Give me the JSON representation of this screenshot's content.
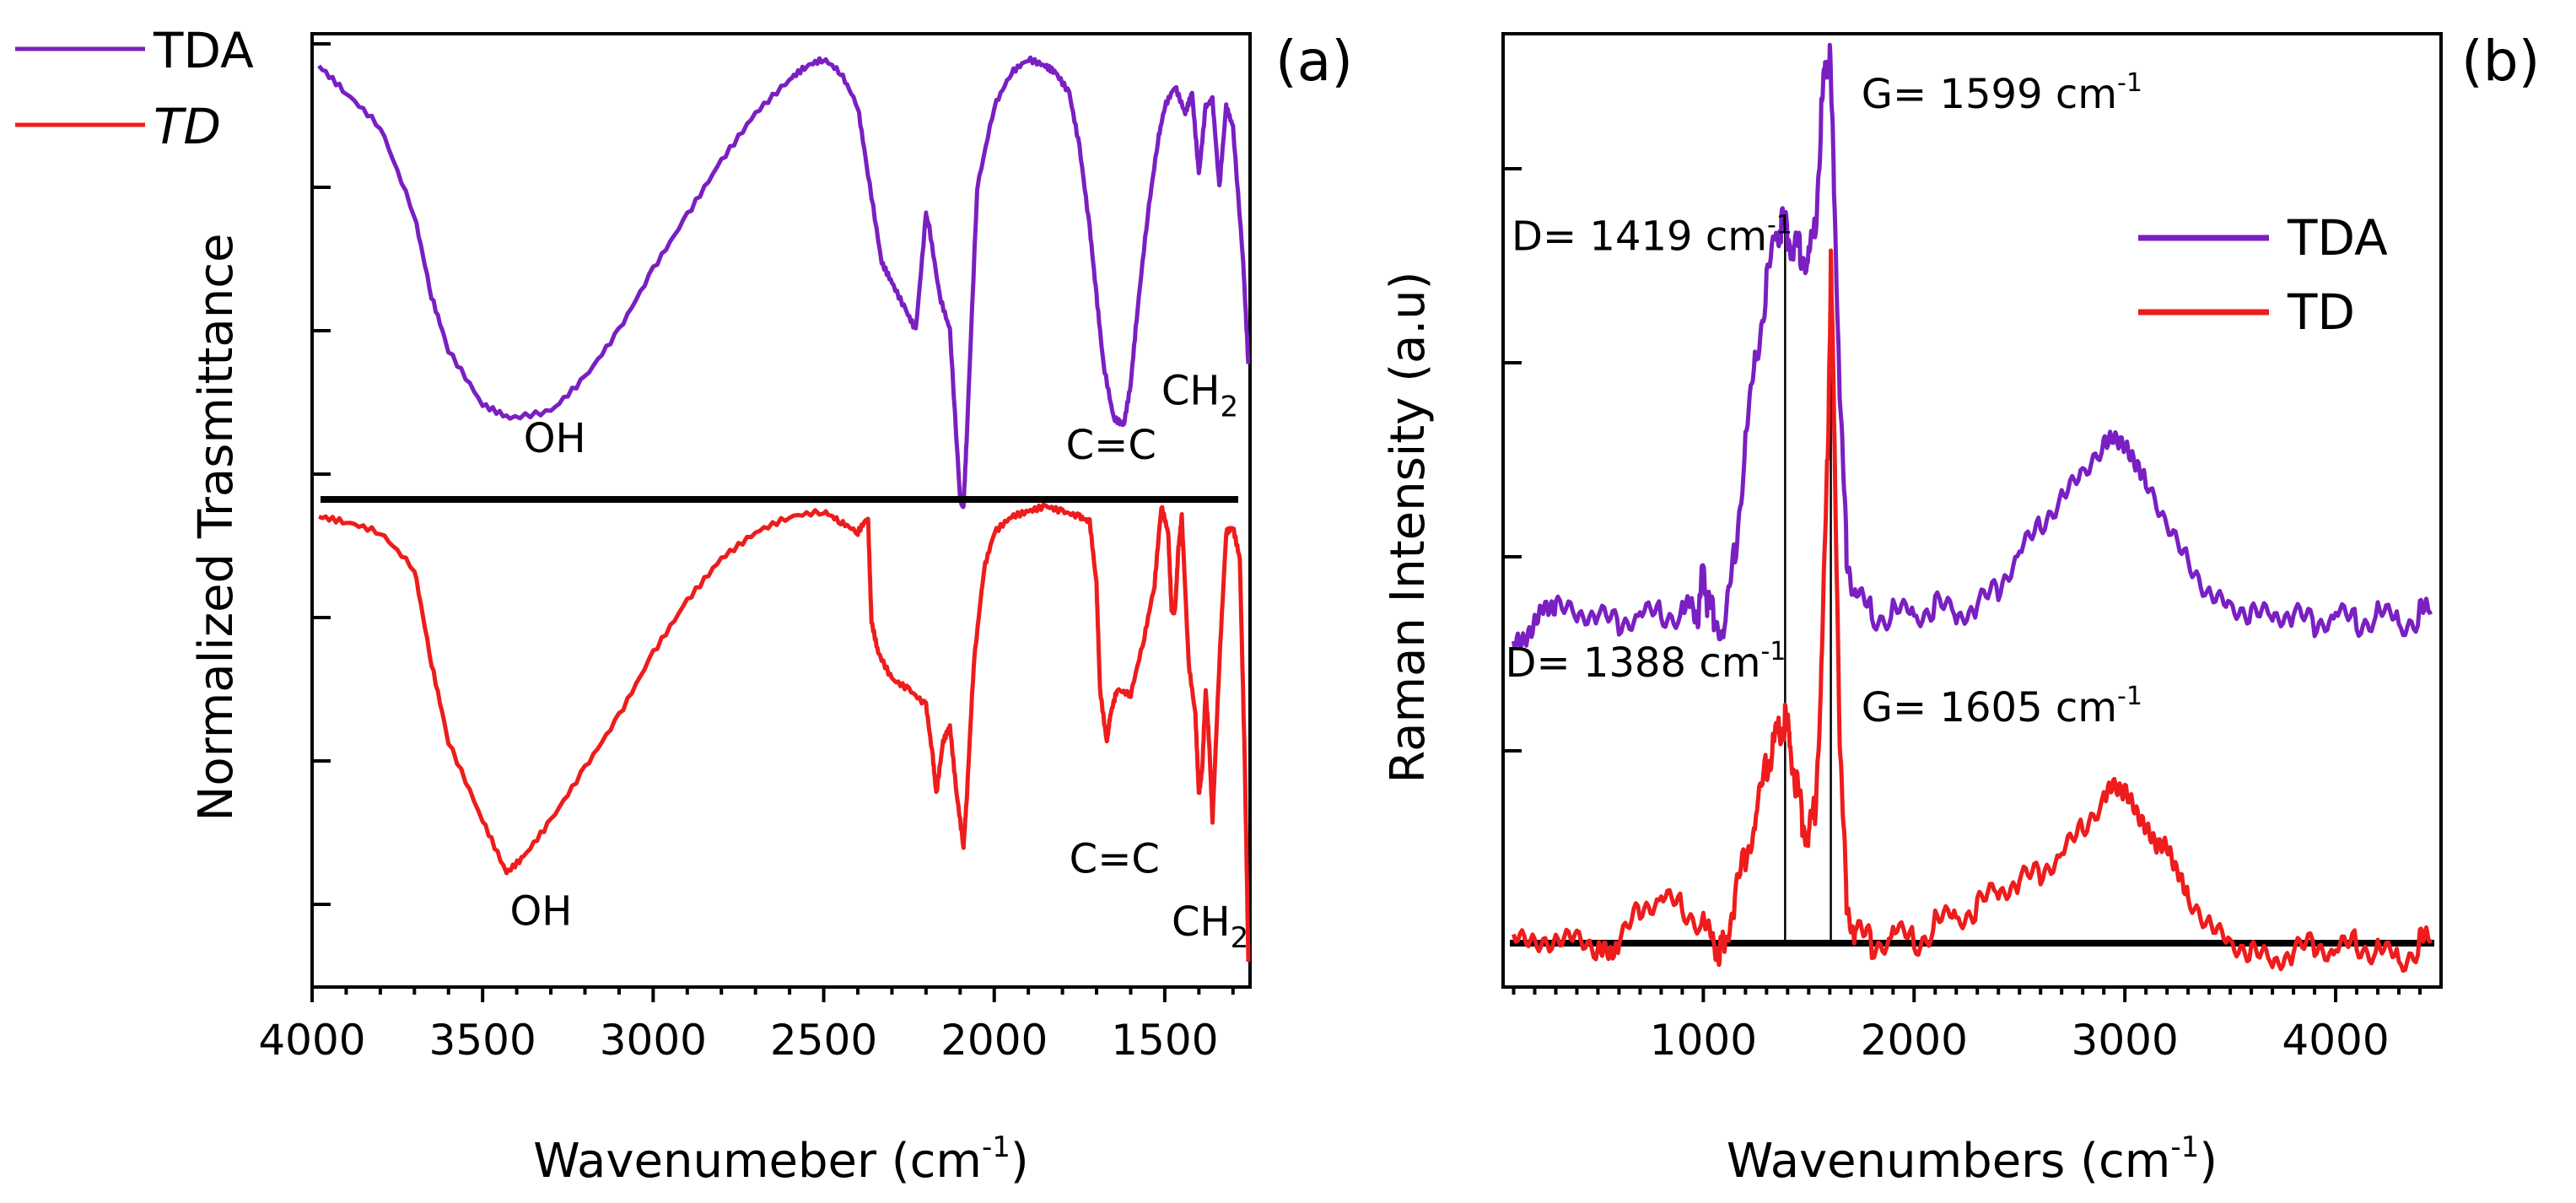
{
  "chart_data": [
    {
      "type": "line",
      "panel_label": "(a)",
      "ylabel": "Normalized Trasmittance",
      "xlabel_main": "Wavenumeber (cm",
      "xlabel_sup": "-1",
      "xlabel_close": ")",
      "xlim": [
        4000,
        1250
      ],
      "x_ticks": [
        4000,
        3500,
        3000,
        2500,
        2000,
        1500
      ],
      "y_tick_count": 7,
      "legend": [
        {
          "name": "TDA",
          "color": "#7a1fc2"
        },
        {
          "name": "TD",
          "color": "#ee1c1c"
        }
      ],
      "series": [
        {
          "name": "TDA",
          "color": "#7a1fc2",
          "x": [
            3980,
            3900,
            3800,
            3700,
            3650,
            3600,
            3500,
            3420,
            3300,
            3200,
            3100,
            3000,
            2900,
            2800,
            2700,
            2600,
            2550,
            2500,
            2450,
            2400,
            2370,
            2330,
            2300,
            2260,
            2230,
            2200,
            2190,
            2160,
            2130,
            2100,
            2090,
            2080,
            2050,
            2000,
            1950,
            1900,
            1850,
            1820,
            1780,
            1750,
            1720,
            1700,
            1680,
            1650,
            1620,
            1600,
            1580,
            1550,
            1520,
            1500,
            1470,
            1440,
            1420,
            1400,
            1380,
            1360,
            1340,
            1320,
            1300,
            1270,
            1255
          ],
          "y": [
            0.94,
            0.9,
            0.85,
            0.72,
            0.6,
            0.52,
            0.44,
            0.42,
            0.43,
            0.48,
            0.55,
            0.64,
            0.72,
            0.8,
            0.87,
            0.92,
            0.94,
            0.95,
            0.93,
            0.88,
            0.78,
            0.65,
            0.62,
            0.58,
            0.55,
            0.72,
            0.7,
            0.6,
            0.55,
            0.3,
            0.29,
            0.4,
            0.76,
            0.88,
            0.93,
            0.95,
            0.94,
            0.93,
            0.9,
            0.82,
            0.7,
            0.6,
            0.5,
            0.42,
            0.41,
            0.47,
            0.58,
            0.72,
            0.83,
            0.88,
            0.91,
            0.87,
            0.9,
            0.78,
            0.88,
            0.89,
            0.76,
            0.88,
            0.85,
            0.65,
            0.5
          ],
          "annotations": [
            {
              "text": "OH",
              "x": 3380,
              "y": 0.37
            },
            {
              "text": "C=C",
              "x": 1790,
              "y": 0.36
            },
            {
              "text": "CH",
              "sub": "2",
              "x": 1510,
              "y": 0.44
            }
          ]
        },
        {
          "name": "TD",
          "color": "#ee1c1c",
          "x": [
            3980,
            3900,
            3800,
            3700,
            3650,
            3600,
            3500,
            3430,
            3380,
            3300,
            3200,
            3100,
            3000,
            2900,
            2800,
            2700,
            2600,
            2500,
            2450,
            2400,
            2370,
            2360,
            2340,
            2300,
            2250,
            2200,
            2180,
            2170,
            2150,
            2130,
            2110,
            2090,
            2080,
            2060,
            2030,
            2000,
            1950,
            1900,
            1850,
            1800,
            1750,
            1720,
            1700,
            1690,
            1670,
            1660,
            1640,
            1600,
            1560,
            1530,
            1510,
            1490,
            1480,
            1470,
            1460,
            1450,
            1430,
            1410,
            1400,
            1390,
            1380,
            1370,
            1360,
            1340,
            1320,
            1300,
            1280,
            1265,
            1255
          ],
          "y": [
            -0.02,
            -0.03,
            -0.05,
            -0.12,
            -0.3,
            -0.45,
            -0.6,
            -0.7,
            -0.67,
            -0.6,
            -0.5,
            -0.4,
            -0.28,
            -0.18,
            -0.1,
            -0.05,
            -0.02,
            -0.01,
            -0.03,
            -0.05,
            -0.02,
            -0.22,
            -0.28,
            -0.33,
            -0.35,
            -0.38,
            -0.48,
            -0.55,
            -0.45,
            -0.42,
            -0.55,
            -0.65,
            -0.55,
            -0.3,
            -0.12,
            -0.05,
            -0.02,
            -0.01,
            0.0,
            -0.01,
            -0.02,
            -0.03,
            -0.15,
            -0.35,
            -0.45,
            -0.4,
            -0.35,
            -0.36,
            -0.25,
            -0.15,
            0.0,
            -0.05,
            -0.2,
            -0.2,
            -0.08,
            -0.02,
            -0.3,
            -0.4,
            -0.55,
            -0.5,
            -0.35,
            -0.45,
            -0.6,
            -0.3,
            -0.05,
            -0.04,
            -0.1,
            -0.5,
            -0.87
          ],
          "annotations": [
            {
              "text": "OH",
              "x": 3420,
              "y": -0.8
            },
            {
              "text": "C=C",
              "x": 1780,
              "y": -0.7
            },
            {
              "text": "CH",
              "sub": "2",
              "x": 1480,
              "y": -0.82
            }
          ]
        }
      ]
    },
    {
      "type": "line",
      "panel_label": "(b)",
      "ylabel": "Raman Intensity (a.u)",
      "xlabel_main": "Wavenumbers (cm",
      "xlabel_sup": "-1",
      "xlabel_close": ")",
      "xlim": [
        50,
        4500
      ],
      "ylim": [
        -0.05,
        1.0
      ],
      "x_ticks": [
        1000,
        2000,
        3000,
        4000
      ],
      "y_tick_count": 5,
      "baseline_y": 0.0,
      "legend": [
        {
          "name": "TDA",
          "color": "#7a1fc2"
        },
        {
          "name": "TD",
          "color": "#ee1c1c"
        }
      ],
      "series": [
        {
          "name": "TDA",
          "color": "#7a1fc2",
          "x": [
            100,
            150,
            200,
            250,
            300,
            400,
            500,
            600,
            700,
            800,
            900,
            950,
            980,
            1000,
            1020,
            1050,
            1100,
            1150,
            1200,
            1250,
            1300,
            1350,
            1370,
            1400,
            1430,
            1460,
            1500,
            1530,
            1560,
            1580,
            1600,
            1620,
            1650,
            1680,
            1720,
            1800,
            1900,
            2000,
            2100,
            2200,
            2300,
            2400,
            2500,
            2600,
            2700,
            2800,
            2900,
            2950,
            3000,
            3050,
            3100,
            3200,
            3300,
            3400,
            3500,
            3600,
            3700,
            3800,
            3900,
            4000,
            4100,
            4200,
            4300,
            4400,
            4450
          ],
          "y": [
            0.34,
            0.34,
            0.36,
            0.38,
            0.38,
            0.37,
            0.37,
            0.36,
            0.37,
            0.37,
            0.37,
            0.38,
            0.37,
            0.43,
            0.38,
            0.37,
            0.35,
            0.44,
            0.56,
            0.66,
            0.74,
            0.8,
            0.81,
            0.8,
            0.78,
            0.78,
            0.77,
            0.8,
            0.93,
            0.99,
            1.0,
            0.86,
            0.6,
            0.44,
            0.39,
            0.37,
            0.37,
            0.37,
            0.38,
            0.37,
            0.38,
            0.4,
            0.44,
            0.47,
            0.5,
            0.53,
            0.56,
            0.57,
            0.56,
            0.54,
            0.52,
            0.47,
            0.43,
            0.39,
            0.38,
            0.37,
            0.37,
            0.37,
            0.36,
            0.37,
            0.36,
            0.37,
            0.36,
            0.37,
            0.37
          ],
          "annotations": [
            {
              "text": "D= 1419 cm",
              "sup": "-1",
              "x": 90,
              "y": 0.78
            },
            {
              "text": "G= 1599 cm",
              "sup": "-1",
              "x": 1750,
              "y": 0.94
            }
          ]
        },
        {
          "name": "TD",
          "color": "#ee1c1c",
          "x": [
            100,
            200,
            300,
            400,
            500,
            550,
            600,
            700,
            800,
            900,
            1000,
            1050,
            1080,
            1100,
            1150,
            1200,
            1250,
            1300,
            1330,
            1360,
            1388,
            1410,
            1440,
            1470,
            1500,
            1530,
            1560,
            1590,
            1605,
            1620,
            1650,
            1680,
            1720,
            1800,
            1900,
            2000,
            2100,
            2200,
            2300,
            2400,
            2500,
            2600,
            2700,
            2800,
            2900,
            2950,
            3000,
            3050,
            3100,
            3150,
            3200,
            3250,
            3300,
            3400,
            3500,
            3600,
            3700,
            3800,
            3900,
            4000,
            4100,
            4200,
            4300,
            4400,
            4450
          ],
          "y": [
            0.01,
            0.0,
            0.0,
            0.01,
            -0.01,
            -0.01,
            0.0,
            0.04,
            0.05,
            0.04,
            0.02,
            0.0,
            -0.01,
            0.0,
            0.05,
            0.1,
            0.14,
            0.2,
            0.22,
            0.24,
            0.25,
            0.23,
            0.18,
            0.14,
            0.12,
            0.15,
            0.3,
            0.55,
            0.76,
            0.6,
            0.2,
            0.05,
            0.01,
            0.0,
            0.01,
            0.0,
            0.02,
            0.03,
            0.04,
            0.06,
            0.07,
            0.08,
            0.1,
            0.13,
            0.16,
            0.18,
            0.17,
            0.15,
            0.13,
            0.11,
            0.11,
            0.08,
            0.05,
            0.02,
            0.0,
            -0.01,
            -0.02,
            -0.01,
            0.0,
            -0.01,
            0.0,
            -0.01,
            -0.02,
            0.0,
            0.0
          ],
          "annotations": [
            {
              "text": "D= 1388 cm",
              "sup": "-1",
              "x": 60,
              "y": 0.3
            },
            {
              "text": "G= 1605 cm",
              "sup": "-1",
              "x": 1750,
              "y": 0.25
            }
          ]
        }
      ],
      "peak_lines": [
        {
          "x": 1388,
          "y_top": 0.81
        },
        {
          "x": 1605,
          "y_top": 0.76
        }
      ]
    }
  ]
}
